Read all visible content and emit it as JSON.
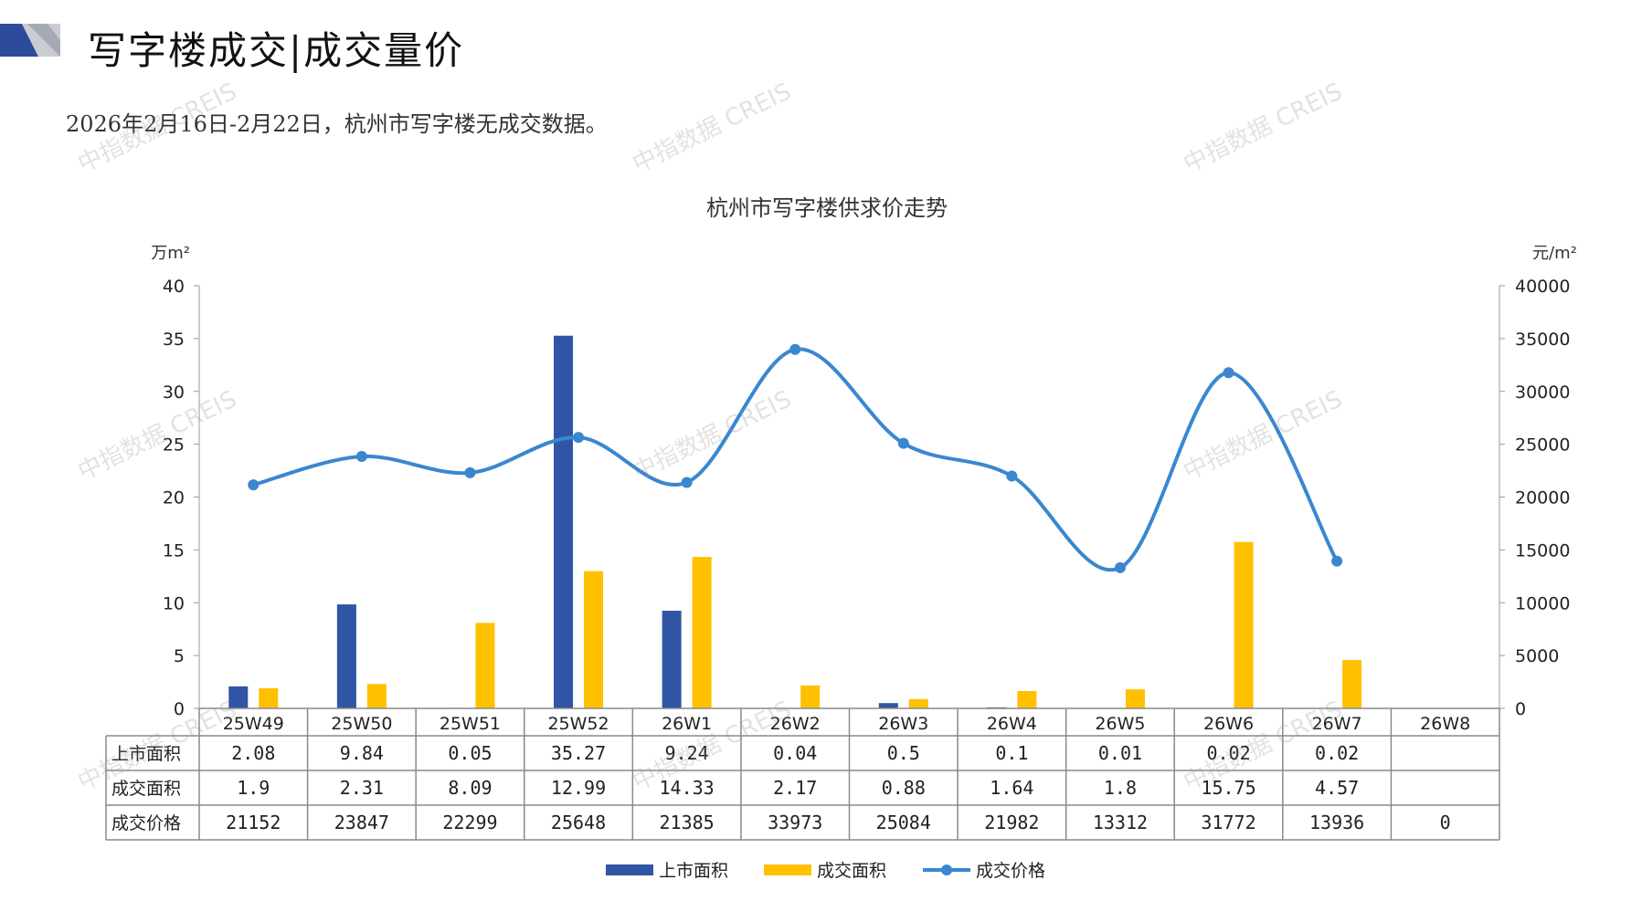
{
  "header": {
    "title": "写字楼成交|成交量价",
    "subtitle": "2026年2月16日-2月22日，杭州市写字楼无成交数据。"
  },
  "watermark": "中指数据 CREIS",
  "colors": {
    "listed": "#2f55a4",
    "traded": "#ffc000",
    "price": "#3a87d0",
    "logo_dark": "#2e4a9a",
    "logo_light": "#c9ccd3"
  },
  "chart_data": {
    "type": "bar",
    "title": "杭州市写字楼供求价走势",
    "ylabel_left": "万m²",
    "ylabel_right": "元/m²",
    "ylim_left": [
      0,
      40
    ],
    "yticks_left": [
      0,
      5,
      10,
      15,
      20,
      25,
      30,
      35,
      40
    ],
    "ylim_right": [
      0,
      40000
    ],
    "yticks_right": [
      0,
      5000,
      10000,
      15000,
      20000,
      25000,
      30000,
      35000,
      40000
    ],
    "categories": [
      "25W49",
      "25W50",
      "25W51",
      "25W52",
      "26W1",
      "26W2",
      "26W3",
      "26W4",
      "26W5",
      "26W6",
      "26W7",
      "26W8"
    ],
    "series": [
      {
        "name": "上市面积",
        "type": "bar",
        "axis": "left",
        "values": [
          "2.08",
          "9.84",
          "0.05",
          "35.27",
          "9.24",
          "0.04",
          "0.5",
          "0.1",
          "0.01",
          "0.02",
          "0.02",
          ""
        ]
      },
      {
        "name": "成交面积",
        "type": "bar",
        "axis": "left",
        "values": [
          "1.9",
          "2.31",
          "8.09",
          "12.99",
          "14.33",
          "2.17",
          "0.88",
          "1.64",
          "1.8",
          "15.75",
          "4.57",
          ""
        ]
      },
      {
        "name": "成交价格",
        "type": "line",
        "axis": "right",
        "smooth": true,
        "values": [
          "21152",
          "23847",
          "22299",
          "25648",
          "21385",
          "33973",
          "25084",
          "21982",
          "13312",
          "31772",
          "13936",
          "0"
        ]
      }
    ],
    "legend_position": "bottom",
    "data_table": true
  }
}
